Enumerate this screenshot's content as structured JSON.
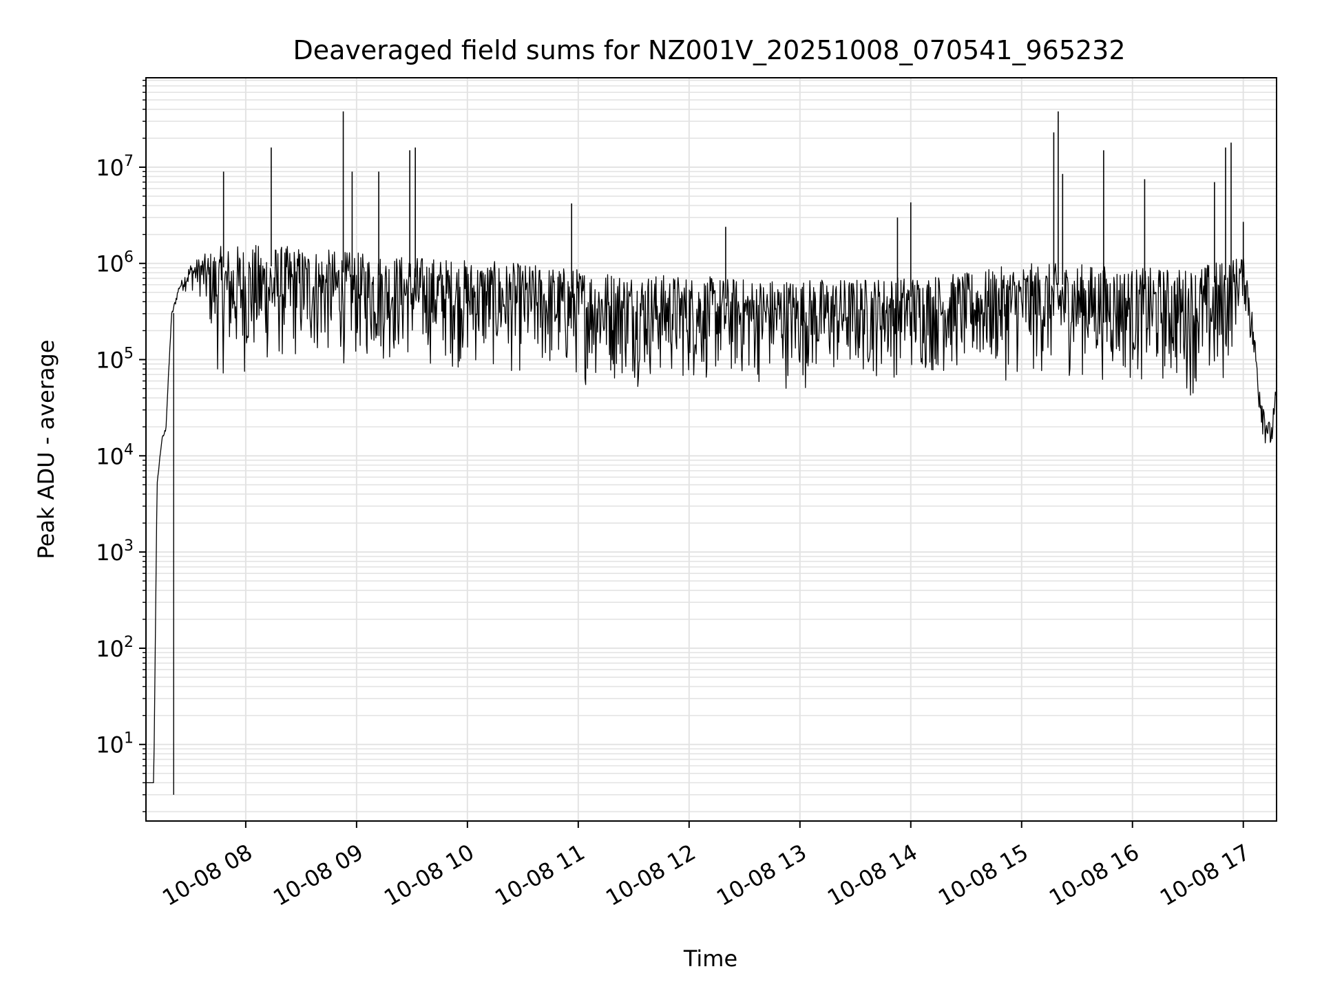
{
  "chart_data": {
    "type": "line",
    "title": "Deaveraged field sums for NZ001V_20251008_070541_965232",
    "xlabel": "Time",
    "ylabel": "Peak ADU - average",
    "yscale": "log",
    "ylim": [
      1.6,
      85000000
    ],
    "xlim_hours": [
      7.1,
      17.3
    ],
    "grid": true,
    "x_ticks": [
      {
        "label": "10-08 08",
        "hour": 8
      },
      {
        "label": "10-08 09",
        "hour": 9
      },
      {
        "label": "10-08 10",
        "hour": 10
      },
      {
        "label": "10-08 11",
        "hour": 11
      },
      {
        "label": "10-08 12",
        "hour": 12
      },
      {
        "label": "10-08 13",
        "hour": 13
      },
      {
        "label": "10-08 14",
        "hour": 14
      },
      {
        "label": "10-08 15",
        "hour": 15
      },
      {
        "label": "10-08 16",
        "hour": 16
      },
      {
        "label": "10-08 17",
        "hour": 17
      }
    ],
    "y_ticks": [
      {
        "base": "10",
        "exp": "1",
        "value": 10
      },
      {
        "base": "10",
        "exp": "2",
        "value": 100
      },
      {
        "base": "10",
        "exp": "3",
        "value": 1000
      },
      {
        "base": "10",
        "exp": "4",
        "value": 10000
      },
      {
        "base": "10",
        "exp": "5",
        "value": 100000
      },
      {
        "base": "10",
        "exp": "6",
        "value": 1000000
      },
      {
        "base": "10",
        "exp": "7",
        "value": 10000000
      }
    ],
    "series": [
      {
        "name": "Peak ADU - average",
        "color": "#000000",
        "envelope": {
          "x_hours": [
            7.1,
            7.13,
            7.17,
            7.2,
            7.24,
            7.28,
            7.33,
            7.4,
            7.5,
            7.6,
            7.75,
            8.0,
            8.5,
            9.0,
            9.5,
            10.0,
            10.5,
            11.0,
            11.5,
            12.0,
            12.5,
            13.0,
            13.5,
            14.0,
            14.5,
            15.0,
            15.5,
            16.0,
            16.5,
            16.8,
            17.0,
            17.05,
            17.1,
            17.15,
            17.2,
            17.25,
            17.3
          ],
          "high": [
            4,
            4,
            4,
            5000,
            15000,
            20000,
            300000,
            600000,
            1000000,
            1200000,
            1500000,
            1600000,
            1500000,
            1300000,
            1200000,
            1100000,
            1000000,
            900000,
            800000,
            750000,
            700000,
            700000,
            700000,
            750000,
            800000,
            1000000,
            1000000,
            900000,
            900000,
            1100000,
            1200000,
            700000,
            200000,
            60000,
            30000,
            20000,
            60000
          ],
          "low": [
            4,
            4,
            4,
            5000,
            12000,
            18000,
            250000,
            500000,
            500000,
            400000,
            60000,
            60000,
            80000,
            80000,
            80000,
            70000,
            60000,
            50000,
            50000,
            50000,
            50000,
            45000,
            55000,
            60000,
            60000,
            55000,
            60000,
            50000,
            40000,
            30000,
            400000,
            150000,
            60000,
            20000,
            12000,
            10000,
            12000
          ]
        },
        "spikes": [
          {
            "hour": 7.8,
            "value": 9000000
          },
          {
            "hour": 8.23,
            "value": 16000000
          },
          {
            "hour": 8.88,
            "value": 38000000
          },
          {
            "hour": 8.96,
            "value": 9000000
          },
          {
            "hour": 9.2,
            "value": 9000000
          },
          {
            "hour": 9.48,
            "value": 15000000
          },
          {
            "hour": 9.53,
            "value": 16000000
          },
          {
            "hour": 10.94,
            "value": 4200000
          },
          {
            "hour": 12.33,
            "value": 2400000
          },
          {
            "hour": 13.88,
            "value": 3000000
          },
          {
            "hour": 14.0,
            "value": 4300000
          },
          {
            "hour": 15.29,
            "value": 23000000
          },
          {
            "hour": 15.33,
            "value": 38000000
          },
          {
            "hour": 15.37,
            "value": 8500000
          },
          {
            "hour": 15.74,
            "value": 15000000
          },
          {
            "hour": 16.11,
            "value": 7500000
          },
          {
            "hour": 16.74,
            "value": 7000000
          },
          {
            "hour": 16.84,
            "value": 16000000
          },
          {
            "hour": 16.89,
            "value": 18000000
          },
          {
            "hour": 17.0,
            "value": 2700000
          }
        ],
        "dips": [
          {
            "hour": 7.35,
            "value": 3
          }
        ]
      }
    ]
  }
}
